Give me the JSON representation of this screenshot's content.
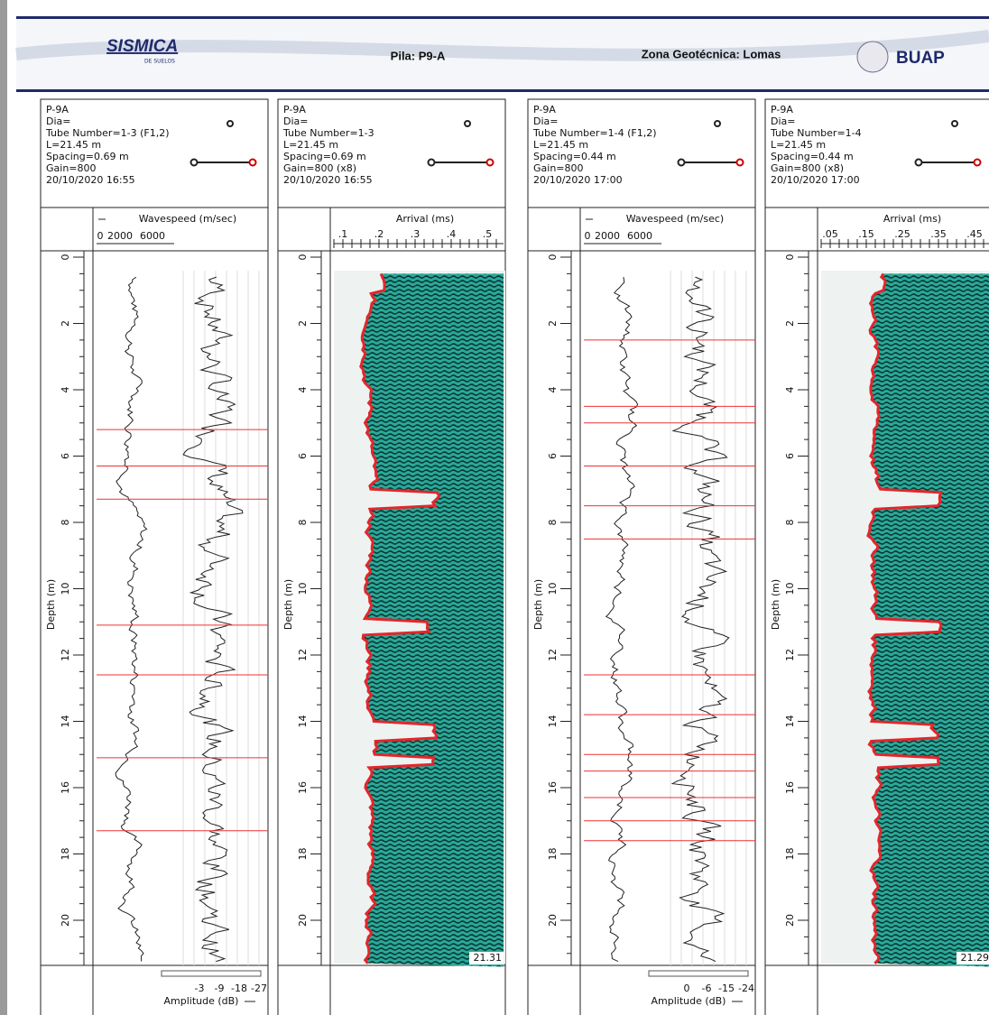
{
  "header": {
    "logo": "SISMICA",
    "logo_sub": "DE SUELOS",
    "pile": "Pila: P9-A",
    "zone": "Zona Geotécnica: Lomas",
    "institution": "BUAP"
  },
  "depth_label": "Depth (m)",
  "depth_ticks": [
    0,
    2,
    4,
    6,
    8,
    10,
    12,
    14,
    16,
    18,
    20
  ],
  "panels": [
    {
      "kind": "wavespeed",
      "info": [
        "P-9A",
        "Dia=",
        "Tube Number=1-3 (F1,2)",
        "L=21.45 m",
        "Spacing=0.69 m",
        "Gain=800",
        "20/10/2020 16:55"
      ],
      "axis_title": "Wavespeed (m/sec)",
      "axis_ticks": [
        "0",
        "2000",
        "6000"
      ],
      "footer_ticks": [
        "-3",
        "-9",
        "-18",
        "-27"
      ],
      "footer_title": "Amplitude (dB)"
    },
    {
      "kind": "arrival",
      "info": [
        "P-9A",
        "Dia=",
        "Tube Number=1-3",
        "L=21.45 m",
        "Spacing=0.69 m",
        "Gain=800 (x8)",
        "20/10/2020 16:55"
      ],
      "axis_title": "Arrival (ms)",
      "axis_ticks": [
        ".1",
        ".2",
        ".3",
        ".4",
        ".5"
      ],
      "end_label": "21.31"
    },
    {
      "kind": "wavespeed",
      "info": [
        "P-9A",
        "Dia=",
        "Tube Number=1-4 (F1,2)",
        "L=21.45 m",
        "Spacing=0.44 m",
        "Gain=800",
        "20/10/2020 17:00"
      ],
      "axis_title": "Wavespeed (m/sec)",
      "axis_ticks": [
        "0",
        "2000",
        "6000"
      ],
      "footer_ticks": [
        "0",
        "-6",
        "-15",
        "-24"
      ],
      "footer_title": "Amplitude (dB)"
    },
    {
      "kind": "arrival",
      "info": [
        "P-9A",
        "Dia=",
        "Tube Number=1-4",
        "L=21.45 m",
        "Spacing=0.44 m",
        "Gain=800 (x8)",
        "20/10/2020 17:00"
      ],
      "axis_title": "Arrival (ms)",
      "axis_ticks": [
        ".05",
        ".15",
        ".25",
        ".35",
        ".45"
      ],
      "end_label": "21.29"
    }
  ]
}
